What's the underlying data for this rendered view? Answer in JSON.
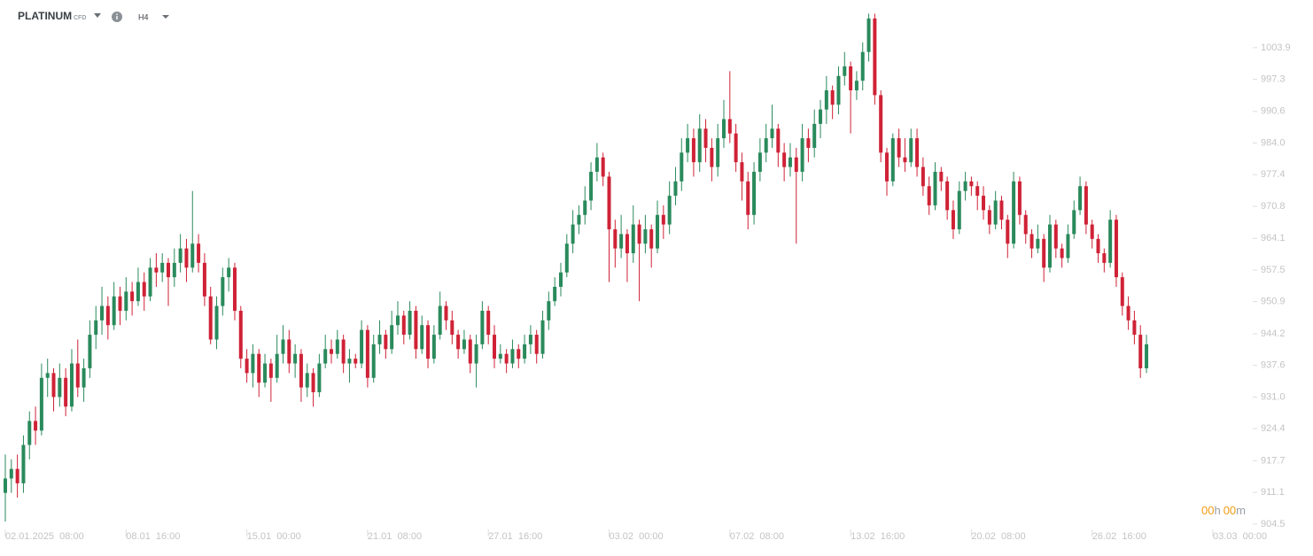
{
  "header": {
    "symbol": "PLATINUM",
    "kind": "CFD",
    "interval": "H4"
  },
  "countdown": [
    "00",
    "h",
    "00",
    "m"
  ],
  "chart_data": {
    "type": "candlestick",
    "colors": {
      "up": "#2a8a5c",
      "down": "#cf2236"
    },
    "ylim": [
      903,
      1012
    ],
    "yticks": [
      904.5,
      911.1,
      917.7,
      924.4,
      {
        "value": 931,
        "label": "931.0"
      },
      937.6,
      944.2,
      950.9,
      957.5,
      964.1,
      970.8,
      977.4,
      {
        "value": 984,
        "label": "984.0"
      },
      990.6,
      997.3,
      1003.9
    ],
    "categories": [
      "02.01.2025  08:00",
      null,
      null,
      null,
      null,
      null,
      null,
      null,
      null,
      null,
      null,
      null,
      null,
      null,
      null,
      null,
      null,
      null,
      null,
      null,
      "08.01  16:00",
      null,
      null,
      null,
      null,
      null,
      null,
      null,
      null,
      null,
      null,
      null,
      null,
      null,
      null,
      null,
      null,
      null,
      null,
      null,
      "15.01  00:00",
      null,
      null,
      null,
      null,
      null,
      null,
      null,
      null,
      null,
      null,
      null,
      null,
      null,
      null,
      null,
      null,
      null,
      null,
      null,
      "21.01  08:00",
      null,
      null,
      null,
      null,
      null,
      null,
      null,
      null,
      null,
      null,
      null,
      null,
      null,
      null,
      null,
      null,
      null,
      null,
      null,
      "27.01  16:00",
      null,
      null,
      null,
      null,
      null,
      null,
      null,
      null,
      null,
      null,
      null,
      null,
      null,
      null,
      null,
      null,
      null,
      null,
      null,
      "03.02  00:00",
      null,
      null,
      null,
      null,
      null,
      null,
      null,
      null,
      null,
      null,
      null,
      null,
      null,
      null,
      null,
      null,
      null,
      null,
      null,
      "07.02  08:00",
      null,
      null,
      null,
      null,
      null,
      null,
      null,
      null,
      null,
      null,
      null,
      null,
      null,
      null,
      null,
      null,
      null,
      null,
      null,
      "13.02  16:00",
      null,
      null,
      null,
      null,
      null,
      null,
      null,
      null,
      null,
      null,
      null,
      null,
      null,
      null,
      null,
      null,
      null,
      null,
      null,
      "20.02  08:00",
      null,
      null,
      null,
      null,
      null,
      null,
      null,
      null,
      null,
      null,
      null,
      null,
      null,
      null,
      null,
      null,
      null,
      null,
      null,
      "26.02  16:00",
      null,
      null,
      null,
      null,
      null,
      null,
      null,
      null,
      null,
      null,
      null,
      null,
      null,
      null,
      null,
      null,
      null,
      null,
      null,
      "03.03  00:00"
    ],
    "ohlc": [
      [
        911,
        919,
        905,
        914
      ],
      [
        914,
        918,
        911,
        916
      ],
      [
        916,
        919,
        910,
        913
      ],
      [
        913,
        923,
        911,
        921
      ],
      [
        921,
        928,
        918,
        926
      ],
      [
        926,
        929,
        921,
        924
      ],
      [
        924,
        938,
        923,
        935
      ],
      [
        935,
        939,
        931,
        936
      ],
      [
        936,
        937,
        928,
        931
      ],
      [
        931,
        938,
        929,
        935
      ],
      [
        935,
        937,
        927,
        929
      ],
      [
        929,
        941,
        928,
        938
      ],
      [
        938,
        943,
        931,
        933
      ],
      [
        933,
        939,
        930,
        937
      ],
      [
        937,
        947,
        935,
        944
      ],
      [
        944,
        950,
        941,
        947
      ],
      [
        947,
        954,
        944,
        950
      ],
      [
        950,
        952,
        943,
        946
      ],
      [
        946,
        955,
        945,
        952
      ],
      [
        952,
        954,
        946,
        949
      ],
      [
        949,
        956,
        947,
        953
      ],
      [
        953,
        955,
        948,
        951
      ],
      [
        951,
        958,
        950,
        955
      ],
      [
        955,
        957,
        949,
        952
      ],
      [
        952,
        960,
        951,
        958
      ],
      [
        958,
        961,
        954,
        957
      ],
      [
        957,
        961,
        955,
        959
      ],
      [
        959,
        960,
        950,
        956
      ],
      [
        956,
        962,
        954,
        959
      ],
      [
        959,
        965,
        957,
        962
      ],
      [
        962,
        964,
        955,
        958
      ],
      [
        958,
        974,
        957,
        963
      ],
      [
        963,
        965,
        957,
        959
      ],
      [
        959,
        961,
        950,
        952
      ],
      [
        952,
        954,
        942,
        943
      ],
      [
        943,
        952,
        941,
        950
      ],
      [
        950,
        958,
        948,
        956
      ],
      [
        956,
        960,
        953,
        958
      ],
      [
        958,
        959,
        947,
        949
      ],
      [
        949,
        950,
        937,
        939
      ],
      [
        939,
        941,
        934,
        936
      ],
      [
        936,
        942,
        933,
        940
      ],
      [
        940,
        941,
        931,
        934
      ],
      [
        934,
        940,
        933,
        938
      ],
      [
        938,
        939,
        930,
        935
      ],
      [
        935,
        944,
        934,
        940
      ],
      [
        940,
        946,
        938,
        943
      ],
      [
        943,
        945,
        936,
        938
      ],
      [
        938,
        942,
        935,
        940
      ],
      [
        940,
        941,
        930,
        933
      ],
      [
        933,
        938,
        931,
        936
      ],
      [
        936,
        937,
        929,
        932
      ],
      [
        932,
        940,
        931,
        938
      ],
      [
        938,
        944,
        937,
        941
      ],
      [
        941,
        943,
        938,
        940
      ],
      [
        940,
        945,
        939,
        943
      ],
      [
        943,
        944,
        936,
        938
      ],
      [
        938,
        941,
        934,
        939
      ],
      [
        939,
        940,
        937,
        938
      ],
      [
        938,
        947,
        937,
        945
      ],
      [
        945,
        946,
        933,
        935
      ],
      [
        935,
        944,
        934,
        942
      ],
      [
        942,
        947,
        940,
        944
      ],
      [
        944,
        945,
        939,
        941
      ],
      [
        941,
        949,
        940,
        946
      ],
      [
        946,
        951,
        944,
        948
      ],
      [
        948,
        949,
        942,
        944
      ],
      [
        944,
        951,
        943,
        949
      ],
      [
        949,
        950,
        939,
        941
      ],
      [
        941,
        948,
        940,
        946
      ],
      [
        946,
        947,
        937,
        939
      ],
      [
        939,
        946,
        938,
        944
      ],
      [
        944,
        953,
        943,
        950
      ],
      [
        950,
        951,
        945,
        947
      ],
      [
        947,
        949,
        942,
        944
      ],
      [
        944,
        945,
        939,
        941
      ],
      [
        941,
        945,
        940,
        943
      ],
      [
        943,
        944,
        936,
        938
      ],
      [
        938,
        944,
        933,
        942
      ],
      [
        942,
        951,
        941,
        949
      ],
      [
        949,
        950,
        942,
        944
      ],
      [
        944,
        946,
        937,
        939
      ],
      [
        939,
        942,
        938,
        940
      ],
      [
        940,
        941,
        936,
        938
      ],
      [
        938,
        943,
        937,
        941
      ],
      [
        941,
        942,
        937,
        939
      ],
      [
        939,
        944,
        938,
        942
      ],
      [
        942,
        946,
        940,
        944
      ],
      [
        944,
        945,
        938,
        940
      ],
      [
        940,
        949,
        939,
        947
      ],
      [
        947,
        953,
        945,
        951
      ],
      [
        951,
        956,
        950,
        954
      ],
      [
        954,
        959,
        952,
        957
      ],
      [
        957,
        965,
        956,
        963
      ],
      [
        963,
        970,
        961,
        967
      ],
      [
        967,
        971,
        965,
        969
      ],
      [
        969,
        975,
        967,
        972
      ],
      [
        972,
        980,
        970,
        978
      ],
      [
        978,
        984,
        976,
        981
      ],
      [
        981,
        982,
        975,
        977
      ],
      [
        977,
        978,
        955,
        966
      ],
      [
        966,
        968,
        958,
        962
      ],
      [
        962,
        969,
        960,
        965
      ],
      [
        965,
        966,
        955,
        961
      ],
      [
        961,
        971,
        959,
        967
      ],
      [
        967,
        968,
        951,
        963
      ],
      [
        963,
        969,
        961,
        966
      ],
      [
        966,
        967,
        958,
        962
      ],
      [
        962,
        972,
        961,
        969
      ],
      [
        969,
        971,
        964,
        967
      ],
      [
        967,
        976,
        965,
        973
      ],
      [
        973,
        979,
        971,
        976
      ],
      [
        976,
        985,
        974,
        982
      ],
      [
        982,
        988,
        980,
        985
      ],
      [
        985,
        987,
        977,
        980
      ],
      [
        980,
        990,
        978,
        987
      ],
      [
        987,
        989,
        980,
        983
      ],
      [
        983,
        985,
        976,
        979
      ],
      [
        979,
        988,
        977,
        985
      ],
      [
        985,
        993,
        983,
        989
      ],
      [
        989,
        999,
        984,
        986
      ],
      [
        986,
        988,
        978,
        980
      ],
      [
        980,
        982,
        972,
        976
      ],
      [
        976,
        978,
        966,
        969
      ],
      [
        969,
        980,
        967,
        978
      ],
      [
        978,
        985,
        976,
        982
      ],
      [
        982,
        988,
        980,
        985
      ],
      [
        985,
        992,
        983,
        987
      ],
      [
        987,
        988,
        979,
        982
      ],
      [
        982,
        984,
        976,
        979
      ],
      [
        979,
        984,
        977,
        981
      ],
      [
        981,
        983,
        963,
        978
      ],
      [
        978,
        988,
        976,
        985
      ],
      [
        985,
        987,
        980,
        983
      ],
      [
        983,
        991,
        981,
        988
      ],
      [
        988,
        993,
        985,
        991
      ],
      [
        991,
        998,
        988,
        995
      ],
      [
        995,
        996,
        989,
        992
      ],
      [
        992,
        1000,
        990,
        998
      ],
      [
        998,
        1003,
        996,
        1000
      ],
      [
        1000,
        1001,
        986,
        995
      ],
      [
        995,
        999,
        993,
        997
      ],
      [
        997,
        1005,
        995,
        1003
      ],
      [
        1003,
        1011,
        1001,
        1010
      ],
      [
        1010,
        1011,
        992,
        994
      ],
      [
        994,
        995,
        980,
        982
      ],
      [
        982,
        983,
        973,
        976
      ],
      [
        976,
        986,
        975,
        985
      ],
      [
        985,
        987,
        979,
        981
      ],
      [
        981,
        985,
        978,
        980
      ],
      [
        980,
        987,
        979,
        985
      ],
      [
        985,
        987,
        977,
        979
      ],
      [
        979,
        981,
        973,
        975
      ],
      [
        975,
        977,
        969,
        971
      ],
      [
        971,
        980,
        970,
        978
      ],
      [
        978,
        979,
        974,
        976
      ],
      [
        976,
        977,
        968,
        970
      ],
      [
        970,
        972,
        964,
        966
      ],
      [
        966,
        976,
        965,
        974
      ],
      [
        974,
        978,
        972,
        976
      ],
      [
        976,
        977,
        973,
        975
      ],
      [
        975,
        976,
        970,
        973
      ],
      [
        973,
        975,
        968,
        970
      ],
      [
        970,
        971,
        965,
        967
      ],
      [
        967,
        974,
        966,
        972
      ],
      [
        972,
        973,
        966,
        968
      ],
      [
        968,
        969,
        960,
        963
      ],
      [
        963,
        978,
        962,
        976
      ],
      [
        976,
        977,
        967,
        969
      ],
      [
        969,
        970,
        963,
        965
      ],
      [
        965,
        966,
        960,
        962
      ],
      [
        962,
        967,
        961,
        964
      ],
      [
        964,
        965,
        955,
        958
      ],
      [
        958,
        969,
        957,
        967
      ],
      [
        967,
        968,
        960,
        962
      ],
      [
        962,
        963,
        958,
        960
      ],
      [
        960,
        967,
        959,
        965
      ],
      [
        965,
        972,
        964,
        970
      ],
      [
        970,
        977,
        969,
        975
      ],
      [
        975,
        976,
        965,
        967
      ],
      [
        967,
        968,
        962,
        964
      ],
      [
        964,
        965,
        959,
        961
      ],
      [
        961,
        962,
        957,
        959
      ],
      [
        959,
        970,
        958,
        968
      ],
      [
        968,
        969,
        954,
        956
      ],
      [
        956,
        957,
        948,
        950
      ],
      [
        950,
        952,
        945,
        947
      ],
      [
        947,
        949,
        942,
        944
      ],
      [
        944,
        946,
        935,
        937
      ],
      [
        937,
        944,
        936,
        942
      ],
      null,
      null,
      null,
      null,
      null,
      null,
      null,
      null,
      null,
      null,
      null
    ]
  }
}
